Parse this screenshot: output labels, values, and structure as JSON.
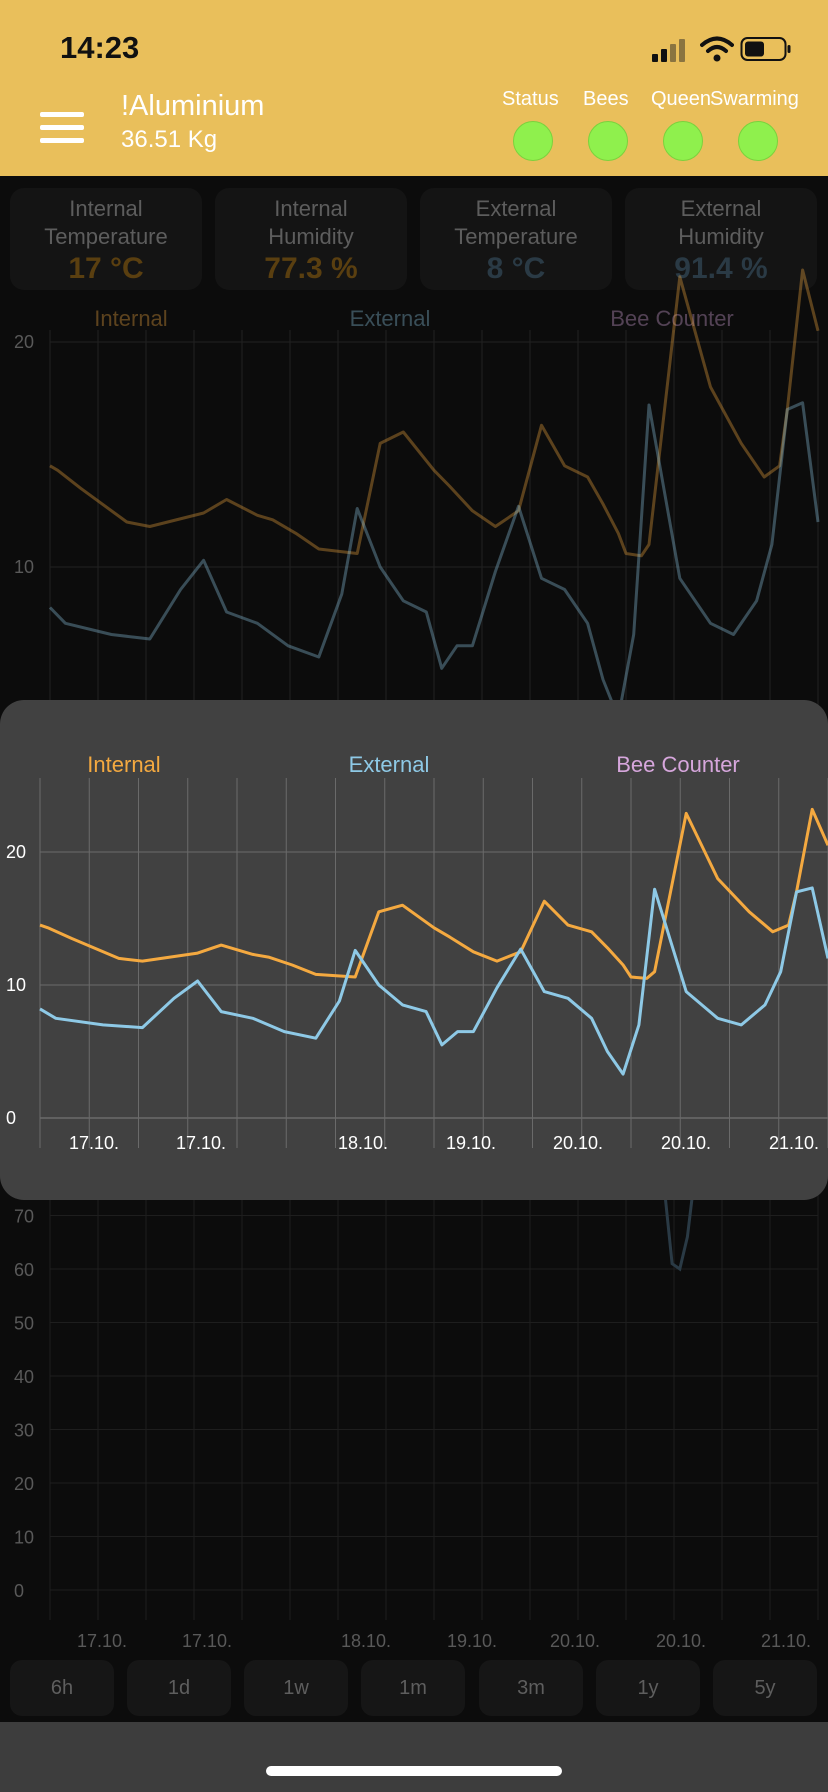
{
  "status_bar": {
    "time": "14:23"
  },
  "hive": {
    "name": "!Aluminium",
    "weight": "36.51 Kg"
  },
  "indicators": [
    {
      "label": "Status",
      "color": "#8ff04d"
    },
    {
      "label": "Bees",
      "color": "#8ff04d"
    },
    {
      "label": "Queen",
      "color": "#8ff04d"
    },
    {
      "label": "Swarming",
      "color": "#8ff04d"
    }
  ],
  "cards": [
    {
      "label1": "Internal",
      "label2": "Temperature",
      "value": "17 °C",
      "color": "#5a3f10"
    },
    {
      "label1": "Internal",
      "label2": "Humidity",
      "value": "77.3 %",
      "color": "#5a3f10"
    },
    {
      "label1": "External",
      "label2": "Temperature",
      "value": "8 °C",
      "color": "#2a3a45"
    },
    {
      "label1": "External",
      "label2": "Humidity",
      "value": "91.4 %",
      "color": "#2a3a45"
    }
  ],
  "time_ranges": [
    "6h",
    "1d",
    "1w",
    "1m",
    "3m",
    "1y",
    "5y"
  ],
  "colors": {
    "internal": "#f4a940",
    "external": "#8ec9e6",
    "bee_counter": "#d6a6dc"
  },
  "chart_data": [
    {
      "type": "line",
      "title": "",
      "legend": [
        "Internal",
        "External",
        "Bee Counter"
      ],
      "legend_placement": "top",
      "x_tick_labels": [
        "17.10.",
        "17.10.",
        "18.10.",
        "19.10.",
        "20.10.",
        "20.10.",
        "21.10."
      ],
      "y_ticks": [
        0,
        10,
        20
      ],
      "ylim": [
        0,
        25
      ],
      "grid": true,
      "series": [
        {
          "name": "Internal",
          "x": [
            0,
            0.01,
            0.04,
            0.1,
            0.13,
            0.2,
            0.23,
            0.27,
            0.29,
            0.32,
            0.35,
            0.4,
            0.43,
            0.46,
            0.5,
            0.52,
            0.55,
            0.58,
            0.61,
            0.64,
            0.67,
            0.7,
            0.72,
            0.74,
            0.75,
            0.77,
            0.78,
            0.82,
            0.86,
            0.9,
            0.93,
            0.95,
            0.96,
            0.98,
            1.0
          ],
          "y": [
            14.5,
            14.3,
            13.5,
            12,
            11.8,
            12.4,
            13,
            12.3,
            12.1,
            11.5,
            10.8,
            10.6,
            15.5,
            16,
            14.3,
            13.6,
            12.5,
            11.8,
            12.5,
            16.3,
            14.5,
            14,
            12.8,
            11.5,
            10.6,
            10.5,
            11,
            22.9,
            18,
            15.5,
            14,
            14.5,
            17,
            23.2,
            20.5
          ]
        },
        {
          "name": "External",
          "x": [
            0,
            0.02,
            0.08,
            0.13,
            0.17,
            0.2,
            0.23,
            0.27,
            0.31,
            0.35,
            0.38,
            0.4,
            0.43,
            0.46,
            0.49,
            0.51,
            0.53,
            0.55,
            0.58,
            0.61,
            0.64,
            0.67,
            0.7,
            0.72,
            0.74,
            0.76,
            0.78,
            0.82,
            0.86,
            0.89,
            0.92,
            0.94,
            0.96,
            0.98,
            1.0
          ],
          "y": [
            8.2,
            7.5,
            7,
            6.8,
            9,
            10.3,
            8,
            7.5,
            6.5,
            6,
            8.8,
            12.6,
            10,
            8.5,
            8,
            5.5,
            6.5,
            6.5,
            9.8,
            12.7,
            9.5,
            9,
            7.5,
            5,
            3.3,
            7,
            17.2,
            9.5,
            7.5,
            7,
            8.5,
            11,
            17,
            17.3,
            12
          ]
        },
        {
          "name": "Bee Counter",
          "x": [],
          "y": []
        }
      ]
    },
    {
      "type": "line",
      "x_tick_labels": [
        "17.10.",
        "17.10.",
        "18.10.",
        "19.10.",
        "20.10.",
        "20.10.",
        "21.10."
      ],
      "y_ticks": [
        0,
        10,
        20,
        30,
        40,
        50,
        60,
        70
      ],
      "ylim": [
        0,
        80
      ],
      "grid": true,
      "series": [
        {
          "name": "",
          "x": [
            0.8,
            0.81,
            0.82,
            0.83,
            0.84
          ],
          "y": [
            75,
            61,
            60,
            66,
            78
          ]
        }
      ]
    }
  ]
}
